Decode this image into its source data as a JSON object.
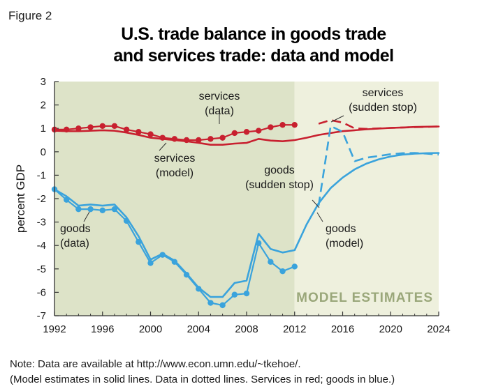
{
  "figure_label": "Figure 2",
  "chart_data": {
    "type": "line",
    "title_lines": [
      "U.S. trade balance in goods trade",
      "and services trade: data and model"
    ],
    "ylabel": "percent GDP",
    "xlabel": "",
    "xlim": [
      1992,
      2024
    ],
    "ylim": [
      -7,
      3
    ],
    "x_ticks": [
      1992,
      1996,
      2000,
      2004,
      2008,
      2012,
      2016,
      2020,
      2024
    ],
    "y_ticks": [
      3,
      2,
      1,
      0,
      -1,
      -2,
      -3,
      -4,
      -5,
      -6,
      -7
    ],
    "data_period": [
      1992,
      2012
    ],
    "model_estimates_period": [
      2012,
      2024
    ],
    "band_label": "MODEL ESTIMATES",
    "colors": {
      "services": "#c8202f",
      "goods": "#3aa3dc",
      "data_band": "#dde3c8",
      "model_band": "#eef0dd",
      "axis": "#333333"
    },
    "series": [
      {
        "name": "services (data)",
        "color": "#c8202f",
        "style": "dotted-markers",
        "x": [
          1992,
          1993,
          1994,
          1995,
          1996,
          1997,
          1998,
          1999,
          2000,
          2001,
          2002,
          2003,
          2004,
          2005,
          2006,
          2007,
          2008,
          2009,
          2010,
          2011,
          2012
        ],
        "y": [
          0.95,
          0.95,
          1.0,
          1.05,
          1.1,
          1.1,
          0.95,
          0.85,
          0.75,
          0.6,
          0.55,
          0.5,
          0.5,
          0.55,
          0.6,
          0.8,
          0.85,
          0.9,
          1.05,
          1.15,
          1.15
        ]
      },
      {
        "name": "services (model)",
        "color": "#c8202f",
        "style": "solid",
        "x": [
          1992,
          1993,
          1994,
          1995,
          1996,
          1997,
          1998,
          1999,
          2000,
          2001,
          2002,
          2003,
          2004,
          2005,
          2006,
          2007,
          2008,
          2009,
          2010,
          2011,
          2012,
          2013,
          2014,
          2015,
          2016,
          2017,
          2018,
          2019,
          2020,
          2021,
          2022,
          2023,
          2024
        ],
        "y": [
          0.9,
          0.88,
          0.88,
          0.9,
          0.92,
          0.9,
          0.82,
          0.72,
          0.6,
          0.55,
          0.5,
          0.45,
          0.38,
          0.3,
          0.3,
          0.35,
          0.38,
          0.55,
          0.48,
          0.45,
          0.5,
          0.6,
          0.72,
          0.8,
          0.88,
          0.92,
          0.96,
          0.99,
          1.02,
          1.04,
          1.06,
          1.07,
          1.08
        ]
      },
      {
        "name": "services (sudden stop)",
        "color": "#c8202f",
        "style": "dashed",
        "x": [
          2014,
          2015,
          2016,
          2017,
          2018,
          2020,
          2022,
          2024
        ],
        "y": [
          1.2,
          1.35,
          1.25,
          1.0,
          0.98,
          1.02,
          1.05,
          1.08
        ]
      },
      {
        "name": "goods (data)",
        "color": "#3aa3dc",
        "style": "dotted-markers",
        "x": [
          1992,
          1993,
          1994,
          1995,
          1996,
          1997,
          1998,
          1999,
          2000,
          2001,
          2002,
          2003,
          2004,
          2005,
          2006,
          2007,
          2008,
          2009,
          2010,
          2011,
          2012
        ],
        "y": [
          -1.6,
          -2.05,
          -2.45,
          -2.45,
          -2.5,
          -2.45,
          -2.95,
          -3.85,
          -4.75,
          -4.4,
          -4.7,
          -5.25,
          -5.85,
          -6.45,
          -6.55,
          -6.1,
          -6.05,
          -3.9,
          -4.7,
          -5.1,
          -4.9
        ]
      },
      {
        "name": "goods (model)",
        "color": "#3aa3dc",
        "style": "solid",
        "x": [
          1992,
          1993,
          1994,
          1995,
          1996,
          1997,
          1998,
          1999,
          2000,
          2001,
          2002,
          2003,
          2004,
          2005,
          2006,
          2007,
          2008,
          2009,
          2010,
          2011,
          2012,
          2013,
          2014,
          2015,
          2016,
          2017,
          2018,
          2019,
          2020,
          2021,
          2022,
          2023,
          2024
        ],
        "y": [
          -1.6,
          -1.9,
          -2.3,
          -2.25,
          -2.3,
          -2.25,
          -2.8,
          -3.6,
          -4.6,
          -4.35,
          -4.65,
          -5.2,
          -5.8,
          -6.2,
          -6.2,
          -5.6,
          -5.5,
          -3.5,
          -4.15,
          -4.3,
          -4.2,
          -3.1,
          -2.2,
          -1.55,
          -1.1,
          -0.75,
          -0.5,
          -0.32,
          -0.2,
          -0.12,
          -0.08,
          -0.06,
          -0.05
        ]
      },
      {
        "name": "goods (sudden stop)",
        "color": "#3aa3dc",
        "style": "dashed",
        "x": [
          2014,
          2015,
          2016,
          2017,
          2018,
          2019,
          2020,
          2021,
          2022,
          2023,
          2024
        ],
        "y": [
          -2.3,
          1.1,
          0.85,
          -0.4,
          -0.25,
          -0.18,
          -0.1,
          -0.06,
          -0.05,
          -0.08,
          -0.12
        ]
      }
    ],
    "annotations": [
      {
        "lines": [
          "services",
          "(data)"
        ],
        "series": "services (data)"
      },
      {
        "lines": [
          "services",
          "(sudden stop)"
        ],
        "series": "services (sudden stop)"
      },
      {
        "lines": [
          "services",
          "(model)"
        ],
        "series": "services (model)"
      },
      {
        "lines": [
          "goods",
          "(sudden stop)"
        ],
        "series": "goods (sudden stop)"
      },
      {
        "lines": [
          "goods",
          "(data)"
        ],
        "series": "goods (data)"
      },
      {
        "lines": [
          "goods",
          "(model)"
        ],
        "series": "goods (model)"
      }
    ]
  },
  "notes": [
    "Note: Data are available at http://www.econ.umn.edu/~tkehoe/.",
    "(Model estimates in solid lines. Data in dotted lines. Services in red; goods in blue.)"
  ]
}
